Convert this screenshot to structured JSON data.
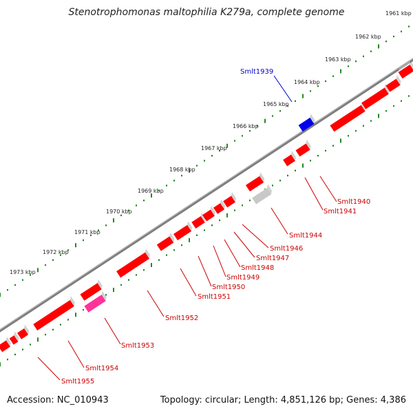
{
  "title": "Stenotrophomonas maltophilia K279a, complete genome",
  "footer": {
    "accession": "Accession: NC_010943",
    "summary": "Topology: circular; Length: 4,851,126 bp; Genes: 4,386"
  },
  "colors": {
    "forward": "#ff0000",
    "highlight_blue": "#0000ee",
    "highlight_pink": "#ff3399",
    "pseudo_grey": "#c8c8c8",
    "backbone": "#888888",
    "ticks": "#228822",
    "label_red": "#cc0000",
    "label_blue": "#0000cc"
  },
  "scale_labels": [
    "1961 kbp",
    "1962 kbp",
    "1963 kbp",
    "1964 kbp",
    "1965 kbp",
    "1966 kbp",
    "1967 kbp",
    "1968 kbp",
    "1969 kbp",
    "1970 kbp",
    "1971 kbp",
    "1972 kbp",
    "1973 kbp"
  ],
  "gene_labels": [
    {
      "text": "Smlt1939",
      "strand": "forward",
      "color": "blue"
    },
    {
      "text": "Smlt1940",
      "strand": "reverse",
      "color": "red"
    },
    {
      "text": "Smlt1941",
      "strand": "reverse",
      "color": "red"
    },
    {
      "text": "Smlt1944",
      "strand": "reverse",
      "color": "red"
    },
    {
      "text": "Smlt1946",
      "strand": "reverse",
      "color": "red"
    },
    {
      "text": "Smlt1947",
      "strand": "reverse",
      "color": "red"
    },
    {
      "text": "Smlt1948",
      "strand": "reverse",
      "color": "red"
    },
    {
      "text": "Smlt1949",
      "strand": "reverse",
      "color": "red"
    },
    {
      "text": "Smlt1950",
      "strand": "reverse",
      "color": "red"
    },
    {
      "text": "Smlt1951",
      "strand": "reverse",
      "color": "red"
    },
    {
      "text": "Smlt1952",
      "strand": "reverse",
      "color": "red"
    },
    {
      "text": "Smlt1953",
      "strand": "reverse",
      "color": "red"
    },
    {
      "text": "Smlt1954",
      "strand": "reverse",
      "color": "red"
    },
    {
      "text": "Smlt1955",
      "strand": "reverse",
      "color": "red"
    }
  ]
}
